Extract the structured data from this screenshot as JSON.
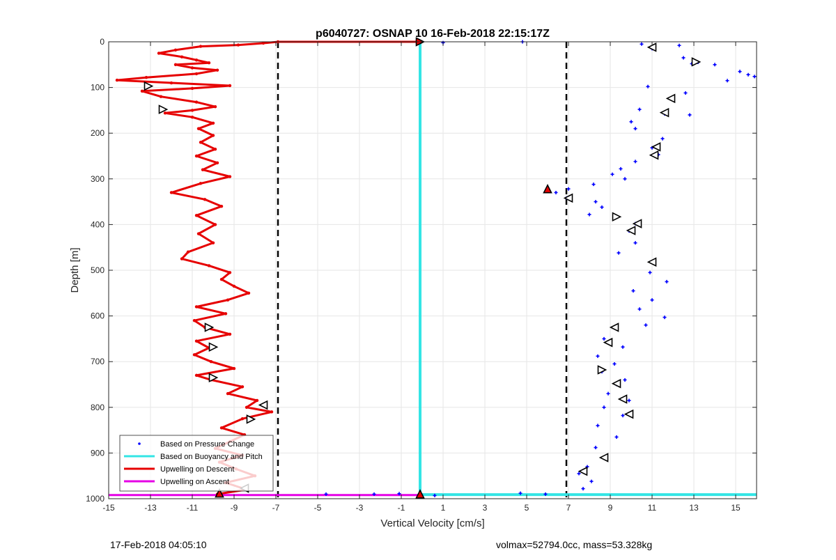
{
  "chart_data": {
    "type": "scatter",
    "title": "p6040727: OSNAP 10 16-Feb-2018 22:15:17Z",
    "xlabel": "Vertical Velocity [cm/s]",
    "ylabel": "Depth [m]",
    "xlim": [
      -15,
      16
    ],
    "ylim": [
      0,
      1000
    ],
    "y_reversed": true,
    "grid": true,
    "x_ticks": [
      -15,
      -13,
      -11,
      -9,
      -7,
      -5,
      -3,
      -1,
      1,
      3,
      5,
      7,
      9,
      11,
      13,
      15
    ],
    "y_ticks": [
      0,
      100,
      200,
      300,
      400,
      500,
      600,
      700,
      800,
      900,
      1000
    ],
    "legend_position": "bottom-left",
    "legend": [
      {
        "label": "Based on Pressure Change",
        "color": "#0000ff",
        "style": "dot"
      },
      {
        "label": "Based on Buoyancy and Pitch",
        "color": "#33e5e5",
        "style": "line"
      },
      {
        "label": "Upwelling on Descent",
        "color": "#e60000",
        "style": "line"
      },
      {
        "label": "Upwelling on Ascent",
        "color": "#e600e6",
        "style": "line"
      }
    ],
    "threshold_lines": [
      -6.9,
      6.9
    ],
    "series": [
      {
        "name": "Based on Buoyancy and Pitch",
        "color": "#33e5e5",
        "segments": [
          [
            [
              -0.1,
              0
            ],
            [
              -0.1,
              991
            ]
          ],
          [
            [
              -0.1,
              991
            ],
            [
              16,
              991
            ]
          ]
        ]
      },
      {
        "name": "Upwelling on Descent",
        "color": "#e60000",
        "points": [
          [
            -0.1,
            0
          ],
          [
            -6.9,
            0
          ],
          [
            -7.6,
            3
          ],
          [
            -8.8,
            7
          ],
          [
            -10.6,
            10
          ],
          [
            -11.8,
            18
          ],
          [
            -12.6,
            25
          ],
          [
            -11.5,
            33
          ],
          [
            -10.8,
            40
          ],
          [
            -10.2,
            46
          ],
          [
            -11.8,
            50
          ],
          [
            -11.0,
            57
          ],
          [
            -9.8,
            62
          ],
          [
            -10.8,
            70
          ],
          [
            -13.2,
            78
          ],
          [
            -14.6,
            84
          ],
          [
            -12.0,
            90
          ],
          [
            -9.2,
            96
          ],
          [
            -11.0,
            102
          ],
          [
            -13.4,
            108
          ],
          [
            -12.5,
            120
          ],
          [
            -10.8,
            132
          ],
          [
            -9.9,
            142
          ],
          [
            -11.0,
            150
          ],
          [
            -12.3,
            156
          ],
          [
            -11.0,
            165
          ],
          [
            -10.0,
            178
          ],
          [
            -10.7,
            190
          ],
          [
            -10.0,
            205
          ],
          [
            -10.6,
            220
          ],
          [
            -9.9,
            235
          ],
          [
            -10.8,
            250
          ],
          [
            -9.8,
            265
          ],
          [
            -10.5,
            280
          ],
          [
            -9.2,
            295
          ],
          [
            -10.6,
            310
          ],
          [
            -12.0,
            330
          ],
          [
            -10.4,
            345
          ],
          [
            -9.6,
            360
          ],
          [
            -10.8,
            380
          ],
          [
            -9.9,
            400
          ],
          [
            -10.7,
            420
          ],
          [
            -10.0,
            440
          ],
          [
            -11.2,
            460
          ],
          [
            -11.5,
            475
          ],
          [
            -10.2,
            490
          ],
          [
            -9.2,
            505
          ],
          [
            -9.6,
            520
          ],
          [
            -9.0,
            535
          ],
          [
            -8.3,
            550
          ],
          [
            -9.3,
            565
          ],
          [
            -10.8,
            580
          ],
          [
            -9.4,
            595
          ],
          [
            -10.9,
            610
          ],
          [
            -10.4,
            625
          ],
          [
            -9.2,
            640
          ],
          [
            -10.8,
            655
          ],
          [
            -10.2,
            670
          ],
          [
            -10.9,
            685
          ],
          [
            -10.1,
            700
          ],
          [
            -9.0,
            715
          ],
          [
            -10.8,
            730
          ],
          [
            -10.1,
            740
          ],
          [
            -8.6,
            755
          ],
          [
            -9.3,
            770
          ],
          [
            -7.9,
            785
          ],
          [
            -8.4,
            800
          ],
          [
            -7.2,
            810
          ],
          [
            -8.6,
            825
          ],
          [
            -9.6,
            845
          ],
          [
            -8.5,
            860
          ],
          [
            -9.2,
            875
          ],
          [
            -9.9,
            890
          ],
          [
            -8.6,
            905
          ],
          [
            -9.7,
            920
          ],
          [
            -8.9,
            935
          ],
          [
            -8.0,
            950
          ],
          [
            -9.4,
            965
          ],
          [
            -8.4,
            980
          ],
          [
            -9.8,
            990
          ]
        ]
      },
      {
        "name": "Upwelling on Ascent",
        "color": "#e600e6",
        "segments": [
          [
            [
              -15,
              992
            ],
            [
              -0.1,
              992
            ]
          ]
        ]
      },
      {
        "name": "Based on Pressure Change",
        "color": "#0000ff",
        "points": [
          [
            11.0,
            15
          ],
          [
            10.5,
            5
          ],
          [
            12.3,
            8
          ],
          [
            13.2,
            45
          ],
          [
            14.0,
            50
          ],
          [
            15.2,
            65
          ],
          [
            15.6,
            72
          ],
          [
            15.9,
            76
          ],
          [
            14.6,
            85
          ],
          [
            12.5,
            35
          ],
          [
            12.9,
            48
          ],
          [
            10.8,
            98
          ],
          [
            12.0,
            125
          ],
          [
            12.6,
            112
          ],
          [
            10.4,
            148
          ],
          [
            11.6,
            158
          ],
          [
            12.8,
            160
          ],
          [
            10.0,
            175
          ],
          [
            10.2,
            190
          ],
          [
            11.5,
            212
          ],
          [
            11.0,
            232
          ],
          [
            11.3,
            247
          ],
          [
            10.2,
            262
          ],
          [
            9.5,
            278
          ],
          [
            9.1,
            290
          ],
          [
            9.7,
            300
          ],
          [
            8.2,
            312
          ],
          [
            7.0,
            322
          ],
          [
            6.4,
            330
          ],
          [
            6.9,
            342
          ],
          [
            8.3,
            350
          ],
          [
            8.6,
            362
          ],
          [
            8.0,
            378
          ],
          [
            9.3,
            383
          ],
          [
            10.2,
            398
          ],
          [
            9.9,
            414
          ],
          [
            10.2,
            440
          ],
          [
            9.4,
            462
          ],
          [
            11.0,
            482
          ],
          [
            10.9,
            505
          ],
          [
            11.7,
            525
          ],
          [
            10.1,
            545
          ],
          [
            11.0,
            565
          ],
          [
            10.4,
            585
          ],
          [
            11.6,
            603
          ],
          [
            10.7,
            620
          ],
          [
            9.3,
            628
          ],
          [
            8.7,
            650
          ],
          [
            9.6,
            668
          ],
          [
            8.4,
            688
          ],
          [
            9.2,
            705
          ],
          [
            8.6,
            722
          ],
          [
            9.7,
            740
          ],
          [
            9.3,
            750
          ],
          [
            8.9,
            770
          ],
          [
            9.9,
            785
          ],
          [
            8.7,
            800
          ],
          [
            9.6,
            818
          ],
          [
            8.4,
            840
          ],
          [
            9.3,
            865
          ],
          [
            8.3,
            888
          ],
          [
            8.8,
            912
          ],
          [
            7.9,
            930
          ],
          [
            7.5,
            945
          ],
          [
            8.1,
            962
          ],
          [
            7.7,
            978
          ],
          [
            4.7,
            988
          ],
          [
            5.9,
            990
          ],
          [
            0.6,
            993
          ],
          [
            -2.3,
            990
          ],
          [
            -1.1,
            989
          ],
          [
            -4.6,
            990
          ],
          [
            1.0,
            2
          ],
          [
            4.8,
            0
          ]
        ]
      }
    ],
    "markers": [
      {
        "x": 11.0,
        "y": 12,
        "dir": "left"
      },
      {
        "x": 13.1,
        "y": 44,
        "dir": "right"
      },
      {
        "x": -13.1,
        "y": 97,
        "dir": "right"
      },
      {
        "x": 11.9,
        "y": 124,
        "dir": "left"
      },
      {
        "x": -12.4,
        "y": 148,
        "dir": "right"
      },
      {
        "x": 11.6,
        "y": 155,
        "dir": "left"
      },
      {
        "x": 11.2,
        "y": 230,
        "dir": "left"
      },
      {
        "x": 11.1,
        "y": 248,
        "dir": "left"
      },
      {
        "x": 6.0,
        "y": 322,
        "dir": "up-red"
      },
      {
        "x": 7.0,
        "y": 342,
        "dir": "left"
      },
      {
        "x": 9.3,
        "y": 383,
        "dir": "right"
      },
      {
        "x": 10.3,
        "y": 398,
        "dir": "left"
      },
      {
        "x": 10.0,
        "y": 413,
        "dir": "left"
      },
      {
        "x": 11.0,
        "y": 482,
        "dir": "left"
      },
      {
        "x": -10.2,
        "y": 625,
        "dir": "right"
      },
      {
        "x": 9.2,
        "y": 625,
        "dir": "left"
      },
      {
        "x": 8.9,
        "y": 658,
        "dir": "left"
      },
      {
        "x": -10.0,
        "y": 668,
        "dir": "right"
      },
      {
        "x": 8.6,
        "y": 718,
        "dir": "right"
      },
      {
        "x": -10.0,
        "y": 735,
        "dir": "right"
      },
      {
        "x": 9.3,
        "y": 748,
        "dir": "left"
      },
      {
        "x": 9.6,
        "y": 782,
        "dir": "left"
      },
      {
        "x": -7.6,
        "y": 795,
        "dir": "left"
      },
      {
        "x": 9.9,
        "y": 815,
        "dir": "left"
      },
      {
        "x": -8.2,
        "y": 826,
        "dir": "right"
      },
      {
        "x": 8.7,
        "y": 910,
        "dir": "left"
      },
      {
        "x": 7.7,
        "y": 940,
        "dir": "left"
      },
      {
        "x": -8.5,
        "y": 977,
        "dir": "left"
      },
      {
        "x": -9.7,
        "y": 988,
        "dir": "up-red"
      },
      {
        "x": -0.1,
        "y": 990,
        "dir": "up-red"
      },
      {
        "x": -0.1,
        "y": 0,
        "dir": "right-red"
      }
    ]
  },
  "footer": {
    "left": "17-Feb-2018 04:05:10",
    "right": "volmax=52794.0cc, mass=53.328kg"
  }
}
